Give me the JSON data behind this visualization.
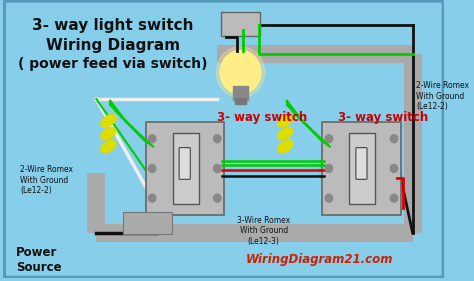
{
  "bg_color": "#87CEEB",
  "border_color": "#5599BB",
  "title_lines": [
    "3- way light switch",
    "Wiring Diagram",
    "( power feed via switch)"
  ],
  "title_color": "#111111",
  "title_fontsize": 11,
  "switch_label_color": "#CC0000",
  "switch_label": "3- way switch",
  "watermark": "WiringDiagram21.com",
  "watermark_color": "#CC2200",
  "label_left": [
    "2-Wire Romex",
    "With Ground",
    "(Le12-2)"
  ],
  "label_mid": [
    "3-Wire Romex",
    "With Ground",
    "(Le12-3)"
  ],
  "label_right": [
    "2-Wire Romex",
    "With Ground",
    "(Le12-2)"
  ],
  "label_power": [
    "Power",
    "Source"
  ],
  "wire_green": "#00CC00",
  "wire_black": "#111111",
  "wire_red": "#DD0000",
  "wire_white": "#EEEEEE",
  "wire_gray": "#AAAAAA",
  "box_color": "#BBBBBB",
  "cap_color": "#DDDD00",
  "frame_color": "#AAAAAA"
}
